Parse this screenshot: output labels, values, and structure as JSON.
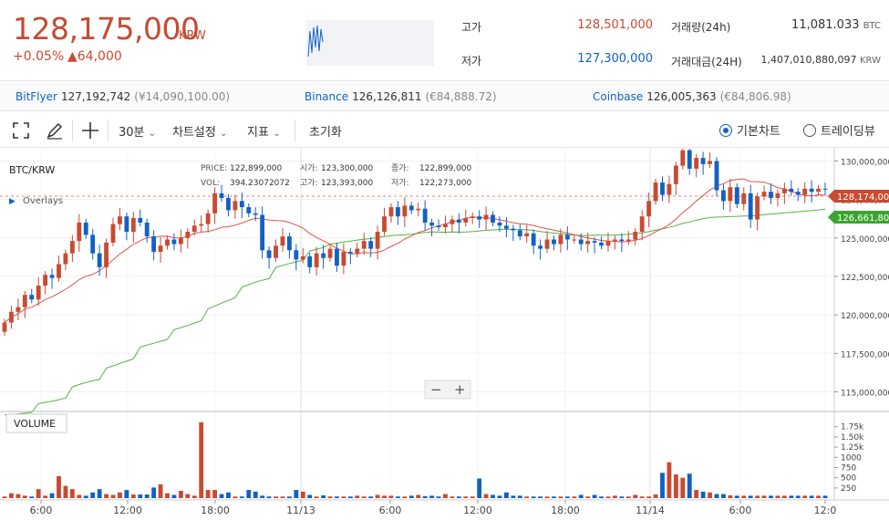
{
  "ticker": {
    "price": "128,175,000",
    "unit": "KRW",
    "change_pct": "+0.05%",
    "change_abs": "▲64,000"
  },
  "stats": {
    "high_label": "고가",
    "high_value": "128,501,000",
    "low_label": "저가",
    "low_value": "127,300,000",
    "volume_label": "거래량(24h)",
    "volume_value": "11,081.033",
    "volume_unit": "BTC",
    "amount_label": "거래대금(24H)",
    "amount_value": "1,407,010,880,097",
    "amount_unit": "KRW"
  },
  "exchanges": [
    {
      "name": "BitFlyer",
      "value": "127,192,742",
      "sub": "(¥14,090,100.00)"
    },
    {
      "name": "Binance",
      "value": "126,126,811",
      "sub": "(€84,888.72)"
    },
    {
      "name": "Coinbase",
      "value": "126,005,363",
      "sub": "(€84,806.98)"
    }
  ],
  "toolbar": {
    "interval": "30분",
    "chart_settings": "차트설정",
    "indicators": "지표",
    "reset": "초기화",
    "basic_chart": "기본차트",
    "tradingview": "트레이딩뷰"
  },
  "chart_info": {
    "symbol": "BTC/KRW",
    "overlays": "Overlays",
    "price_label": "PRICE:",
    "price_val": "122,899,000",
    "vol_label": "VOL:",
    "vol_val": "394.23072072",
    "open_label": "시가:",
    "open_val": "123,300,000",
    "high_label": "고가:",
    "high_val": "123,393,000",
    "close_label": "종가:",
    "close_val": "122,899,000",
    "low_label": "저가:",
    "low_val": "122,273,000",
    "volume_title": "VOLUME",
    "price_badge": "128,174,000",
    "ma_badge": "126,661,800",
    "zoom_minus": "−",
    "zoom_plus": "+"
  },
  "colors": {
    "up": "#c84a31",
    "down": "#1261c4",
    "ma_short": "#e0544a",
    "ma_long": "#55b244"
  },
  "chart_data": {
    "type": "candlestick",
    "y_axis_labels": [
      "130,000,000",
      "127,500,000",
      "125,000,000",
      "122,500,000",
      "120,000,000",
      "117,500,000",
      "115,000,000"
    ],
    "ylim": [
      113900000,
      130800000
    ],
    "vol_axis_labels": [
      "1.75k",
      "1.50k",
      "1.25k",
      "1000",
      "750",
      "500",
      "250"
    ],
    "vol_lim": [
      0,
      1900
    ],
    "x_tick_labels": [
      "6:00",
      "12:00",
      "18:00",
      "11/13",
      "6:00",
      "12:00",
      "18:00",
      "11/14",
      "6:00",
      "12:0"
    ],
    "ma_short_label": "128,174,000",
    "ma_long_label": "126,661,800"
  }
}
